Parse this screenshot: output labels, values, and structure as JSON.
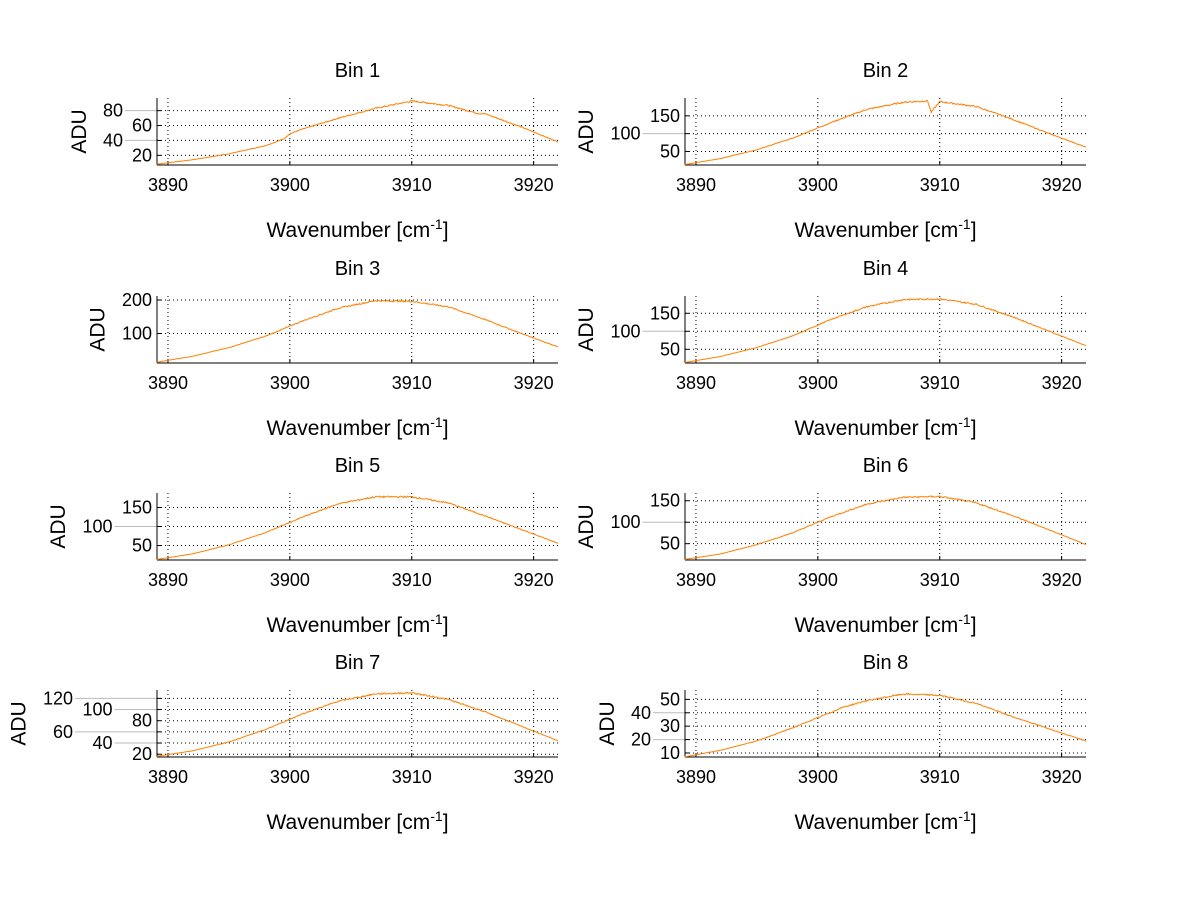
{
  "chart_data": [
    {
      "type": "line",
      "title": "Bin 1",
      "xlabel": "Wavenumber [cm",
      "xlabel_sup": "-1",
      "xlabel_end": "]",
      "ylabel": "ADU",
      "xlim": [
        3889.1,
        3922.0
      ],
      "ylim": [
        7,
        97
      ],
      "xticks": [
        3890,
        3900,
        3910,
        3920
      ],
      "yticks": [
        20,
        40,
        60,
        80
      ],
      "grid": true,
      "x": [
        3889,
        3892,
        3895,
        3898,
        3899.5,
        3900,
        3901,
        3904,
        3907,
        3910,
        3913,
        3915.5,
        3916,
        3919,
        3922
      ],
      "y": [
        8,
        14,
        22,
        33,
        42,
        49,
        55,
        70,
        83,
        93,
        87,
        76,
        76,
        58,
        38
      ],
      "color": "#ff7f00"
    },
    {
      "type": "line",
      "title": "Bin 2",
      "xlabel": "Wavenumber [cm",
      "xlabel_sup": "-1",
      "xlabel_end": "]",
      "ylabel": "ADU",
      "xlim": [
        3889.1,
        3922.0
      ],
      "ylim": [
        12,
        200
      ],
      "xticks": [
        3890,
        3900,
        3910,
        3920
      ],
      "yticks": [
        50,
        100,
        150
      ],
      "grid": true,
      "x": [
        3889,
        3892,
        3895,
        3898,
        3901,
        3904,
        3907,
        3909,
        3909.3,
        3910,
        3913,
        3916,
        3919,
        3922
      ],
      "y": [
        13,
        30,
        55,
        88,
        130,
        168,
        188,
        192,
        160,
        190,
        176,
        140,
        100,
        62
      ],
      "color": "#ff7f00"
    },
    {
      "type": "line",
      "title": "Bin 3",
      "xlabel": "Wavenumber [cm",
      "xlabel_sup": "-1",
      "xlabel_end": "]",
      "ylabel": "ADU",
      "xlim": [
        3889.1,
        3922.0
      ],
      "ylim": [
        12,
        212
      ],
      "xticks": [
        3890,
        3900,
        3910,
        3920
      ],
      "yticks": [
        100,
        200
      ],
      "grid": true,
      "x": [
        3889,
        3892,
        3895,
        3898,
        3901,
        3904,
        3907,
        3910,
        3913,
        3916,
        3919,
        3922
      ],
      "y": [
        14,
        32,
        58,
        92,
        137,
        176,
        198,
        196,
        180,
        142,
        100,
        60
      ],
      "color": "#ff7f00"
    },
    {
      "type": "line",
      "title": "Bin 4",
      "xlabel": "Wavenumber [cm",
      "xlabel_sup": "-1",
      "xlabel_end": "]",
      "ylabel": "ADU",
      "xlim": [
        3889.1,
        3922.0
      ],
      "ylim": [
        12,
        198
      ],
      "xticks": [
        3890,
        3900,
        3910,
        3920
      ],
      "yticks": [
        50,
        100,
        150
      ],
      "grid": true,
      "x": [
        3889,
        3892,
        3895,
        3898,
        3901,
        3904,
        3907,
        3910,
        3913,
        3916,
        3919,
        3922
      ],
      "y": [
        13,
        30,
        55,
        88,
        132,
        168,
        188,
        190,
        175,
        140,
        100,
        60
      ],
      "color": "#ff7f00"
    },
    {
      "type": "line",
      "title": "Bin 5",
      "xlabel": "Wavenumber [cm",
      "xlabel_sup": "-1",
      "xlabel_end": "]",
      "ylabel": "ADU",
      "xlim": [
        3889.1,
        3922.0
      ],
      "ylim": [
        12,
        188
      ],
      "xticks": [
        3890,
        3900,
        3910,
        3920
      ],
      "yticks": [
        50,
        100,
        150
      ],
      "grid": true,
      "x": [
        3889,
        3892,
        3895,
        3898,
        3901,
        3904,
        3907,
        3910,
        3913,
        3916,
        3919,
        3922
      ],
      "y": [
        13,
        28,
        52,
        84,
        124,
        160,
        178,
        178,
        162,
        128,
        92,
        56
      ],
      "color": "#ff7f00"
    },
    {
      "type": "line",
      "title": "Bin 6",
      "xlabel": "Wavenumber [cm",
      "xlabel_sup": "-1",
      "xlabel_end": "]",
      "ylabel": "ADU",
      "xlim": [
        3889.1,
        3922.0
      ],
      "ylim": [
        12,
        168
      ],
      "xticks": [
        3890,
        3900,
        3910,
        3920
      ],
      "yticks": [
        50,
        100,
        150
      ],
      "grid": true,
      "x": [
        3889,
        3892,
        3895,
        3898,
        3901,
        3904,
        3907,
        3910,
        3913,
        3916,
        3919,
        3922
      ],
      "y": [
        13,
        26,
        48,
        76,
        112,
        142,
        158,
        160,
        145,
        115,
        82,
        48
      ],
      "color": "#ff7f00"
    },
    {
      "type": "line",
      "title": "Bin 7",
      "xlabel": "Wavenumber [cm",
      "xlabel_sup": "-1",
      "xlabel_end": "]",
      "ylabel": "ADU",
      "xlim": [
        3889.1,
        3922.0
      ],
      "ylim": [
        15,
        135
      ],
      "xticks": [
        3890,
        3900,
        3910,
        3920
      ],
      "yticks": [
        20,
        40,
        60,
        80,
        100,
        120
      ],
      "grid": true,
      "x": [
        3889,
        3892,
        3895,
        3898,
        3901,
        3904,
        3907,
        3910,
        3913,
        3916,
        3919,
        3922
      ],
      "y": [
        16,
        26,
        42,
        64,
        92,
        115,
        128,
        130,
        118,
        96,
        70,
        44
      ],
      "color": "#ff7f00"
    },
    {
      "type": "line",
      "title": "Bin 8",
      "xlabel": "Wavenumber [cm",
      "xlabel_sup": "-1",
      "xlabel_end": "]",
      "ylabel": "ADU",
      "xlim": [
        3889.1,
        3922.0
      ],
      "ylim": [
        7,
        57
      ],
      "xticks": [
        3890,
        3900,
        3910,
        3920
      ],
      "yticks": [
        10,
        20,
        30,
        40,
        50
      ],
      "grid": true,
      "x": [
        3889,
        3892,
        3895,
        3898,
        3901,
        3902,
        3904,
        3907,
        3910,
        3913,
        3916,
        3919,
        3922
      ],
      "y": [
        7,
        12,
        19,
        29,
        40,
        44,
        49,
        54,
        53,
        47,
        37,
        28,
        19
      ],
      "color": "#ff7f00"
    }
  ]
}
